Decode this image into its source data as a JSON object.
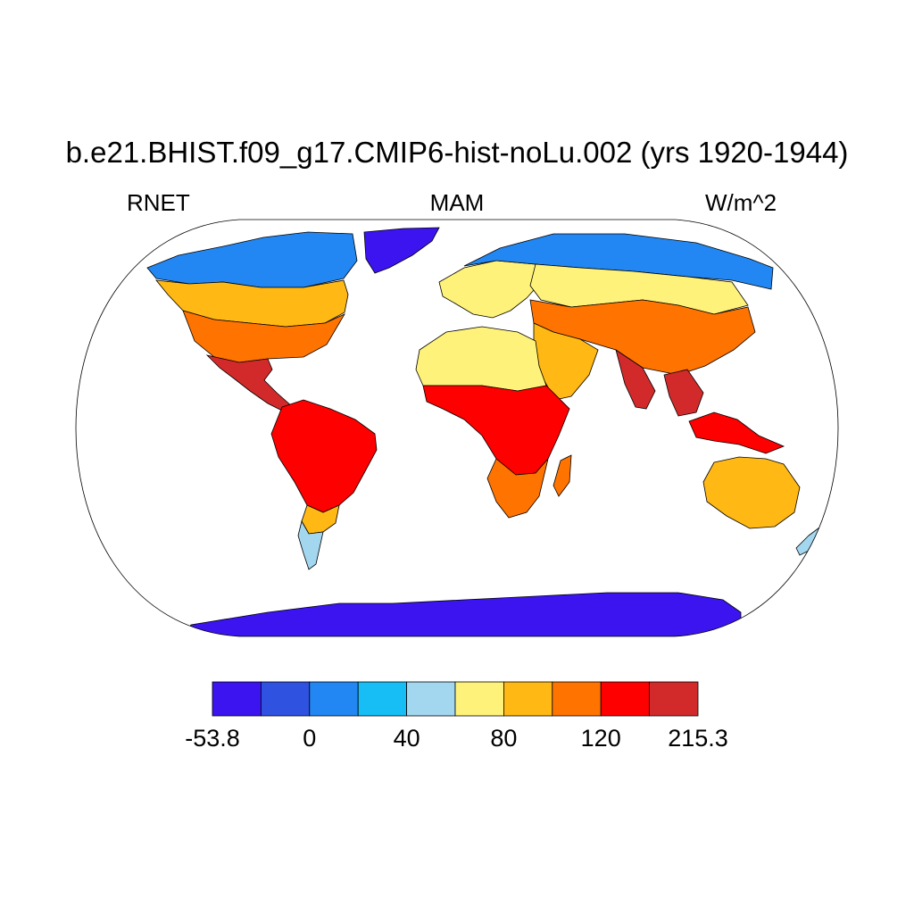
{
  "title": "b.e21.BHIST.f09_g17.CMIP6-hist-noLu.002 (yrs 1920-1944)",
  "left_subtitle": "RNET",
  "center_subtitle": "MAM",
  "right_subtitle": "W/m^2",
  "colorbar": {
    "colors": [
      "#3b14f0",
      "#2f52e0",
      "#2287f2",
      "#17bef5",
      "#a3d7f0",
      "#fff27a",
      "#ffb814",
      "#ff7300",
      "#ff0000",
      "#d22a2a"
    ],
    "labels": [
      "-53.8",
      "0",
      "40",
      "80",
      "120",
      "215.3"
    ]
  },
  "map": {
    "projection": "Robinson",
    "variable": "RNET",
    "land_regions": [
      {
        "name": "Greenland",
        "color": "#3b14f0"
      },
      {
        "name": "North America arctic",
        "color": "#2287f2"
      },
      {
        "name": "Canada",
        "color": "#ffb814"
      },
      {
        "name": "United States",
        "color": "#ff7300"
      },
      {
        "name": "Mexico / Central America",
        "color": "#d22a2a"
      },
      {
        "name": "South America",
        "color": "#ff0000"
      },
      {
        "name": "Patagonia",
        "color": "#a3d7f0"
      },
      {
        "name": "Europe",
        "color": "#fff27a"
      },
      {
        "name": "Siberia",
        "color": "#2287f2"
      },
      {
        "name": "Asia",
        "color": "#ff7300"
      },
      {
        "name": "Sahara",
        "color": "#fff27a"
      },
      {
        "name": "Central Africa",
        "color": "#ff0000"
      },
      {
        "name": "India / SE Asia",
        "color": "#d22a2a"
      },
      {
        "name": "Australia",
        "color": "#ffb814"
      },
      {
        "name": "Antarctica",
        "color": "#3b14f0"
      }
    ]
  }
}
